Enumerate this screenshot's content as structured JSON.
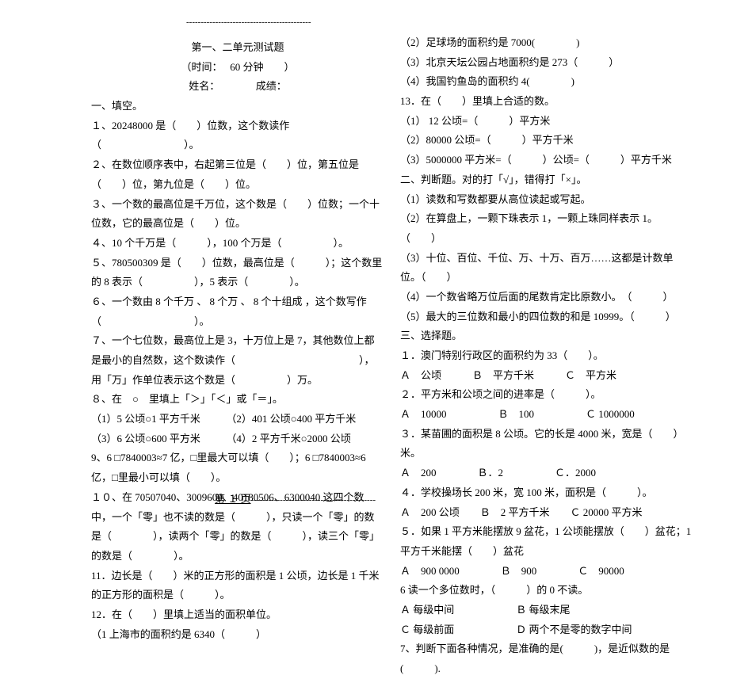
{
  "dashline": "-------------------------------------------",
  "header": {
    "title": "第一、二单元测试题",
    "time_row": "（时间：　 60 分钟　　）",
    "name_row": "姓名：　　　　成绩："
  },
  "left": [
    "一、填空。",
    "１、20248000 是（　　）位数，这个数读作（　　　　　　　　）。",
    "２、在数位顺序表中，右起第三位是（　　）位，第五位是（　　）位，第九位是（　　）位。",
    "３、一个数的最高位是千万位，这个数是（　　）位数；一个十位数，它的最高位是（　　）位。",
    "４、10 个千万是（　　　），100 个万是（　　　　　）。",
    "５、780500309 是（　　）位数，最高位是（　　　）；这个数里的 8 表示（　　　　　），5 表示（　　　　）。",
    "６、一个数由 8 个千万 、 8 个万 、 8 个十组成 ，这个数写作（　　　　　　　　　）。",
    "７、一个七位数，最高位上是 3，十万位上是 7，其他数位上都是最小的自然数，这个数读作（　　　　　　　　　　　　），用「万」作单位表示这个数是（　　　　　）万。",
    "８、在　○　里填上「＞」「＜」或「＝」。",
    "（1）5 公顷○1 平方千米　　　（2）401 公顷○400 平方千米",
    "（3）6 公顷○600 平方米　　　（4）2 平方千米○2000 公顷",
    "9、6 □7840003≈7 亿，□里最大可以填（　　）；6 □7840003≈6 亿，□里最小可以填（　　）。",
    "１０、在 70507040、3009600、40180506、6300040 这四个数中，一个「零」也不读的数是（　　　），只读一个「零」的数是（　　　　），读两个「零」的数是（　　　），读三个「零」的数是（　　　　）。",
    "11．边长是（　　）米的正方形的面积是 1 公顷，边长是 1 千米的正方形的面积是（　　　）。",
    "12．在（　　）里填上适当的面积单位。",
    "（1 上海市的面积约是 6340（　　　）"
  ],
  "right": [
    "（2）足球场的面积约是 7000(　　　　)",
    "（3）北京天坛公园占地面积约是 273（　　　）",
    "（4）我国钓鱼岛的面积约 4(　　　　)",
    "13．在（　　）里填上合适的数。",
    "（1） 12 公顷=（　　　）平方米",
    "（2）80000 公顷=（　　　）平方千米",
    "（3）5000000 平方米=（　　　）公顷=（　　　）平方千米",
    "二、判断题。对的打「√」，错得打「×」。",
    "（1）读数和写数都要从高位读起或写起。",
    "（2）在算盘上，一颗下珠表示 1，一颗上珠同样表示 1。　　（　　）",
    "（3）十位、百位、千位、万、十万、百万……这都是计数单位。（　　）",
    "（4）一个数省略万位后面的尾数肯定比原数小。　（　　　）",
    "（5）最大的三位数和最小的四位数的和是 10999。（　　　）",
    "三、选择题。",
    "１．澳门特别行政区的面积约为 33（　　）。",
    "Ａ　公顷　　　Ｂ　平方千米　　　Ｃ　平方米",
    "２．平方米和公顷之间的进率是（　　　）。",
    "Ａ　10000　　　　　Ｂ　100　　　　　Ｃ 1000000",
    "３．某苗圃的面积是 8 公顷。它的长是 4000 米，宽是（　　）米。",
    "Ａ　200　　　　Ｂ．2　　　　　Ｃ．2000",
    "４．学校操场长 200 米，宽 100 米，面积是（　　　）。",
    "Ａ　200 公顷　　Ｂ　2 平方千米　　Ｃ 20000 平方米",
    "５．如果 1 平方米能摆放 9 盆花，1 公顷能摆放（　　）盆花；1 平方千米能摆（　　）盆花",
    "Ａ　900 0000　　　　Ｂ　900　　　　Ｃ　90000",
    "6 读一个多位数时，（　　　）的 0 不读。",
    "Ａ 每级中间　　　　　　Ｂ 每级末尾",
    "Ｃ 每级前面　　　　　　Ｄ 两个不是零的数字中间",
    "7、判断下面各种情况，是准确的是(　　　)，是近似数的是(　　　).",
    ""
  ],
  "footer": {
    "pre": "　　　　　　　　　　　　",
    "page": "第 １ 页",
    "dash": "-------------------------------------------"
  }
}
